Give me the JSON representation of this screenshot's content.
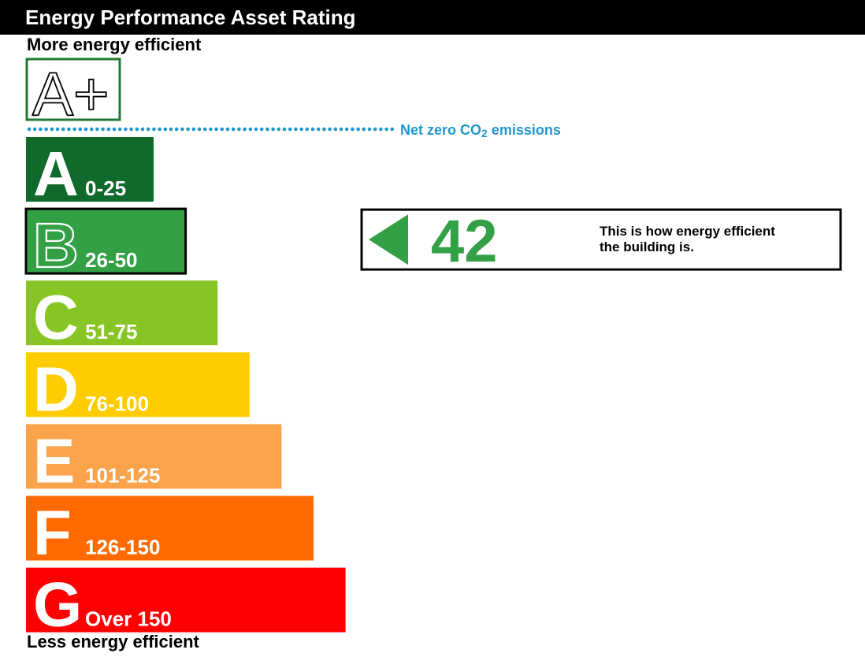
{
  "header": {
    "title": "Energy Performance Asset Rating"
  },
  "captions": {
    "more": "More energy efficient",
    "less": "Less energy efficient"
  },
  "net_zero": {
    "label_prefix": "Net zero CO",
    "label_subscript": "2",
    "label_suffix": " emissions",
    "color": "#1f97cc"
  },
  "chart_data": {
    "type": "bar",
    "title": "Energy Performance Asset Rating",
    "top_band": {
      "letter": "A+",
      "color": "#1f7a30"
    },
    "bands": [
      {
        "letter": "A",
        "range": "0-25",
        "color": "#0f6a2b",
        "text": "#ffffff"
      },
      {
        "letter": "B",
        "range": "26-50",
        "color": "#33a046",
        "text": "#ffffff"
      },
      {
        "letter": "C",
        "range": "51-75",
        "color": "#87c525",
        "text": "#ffffff"
      },
      {
        "letter": "D",
        "range": "76-100",
        "color": "#ffcc00",
        "text": "#ffffff"
      },
      {
        "letter": "E",
        "range": "101-125",
        "color": "#fba34b",
        "text": "#ffffff"
      },
      {
        "letter": "F",
        "range": "126-150",
        "color": "#ff6a00",
        "text": "#ffffff"
      },
      {
        "letter": "G",
        "range": "Over 150",
        "color": "#ff0000",
        "text": "#ffffff"
      }
    ],
    "current": {
      "value": 42,
      "band": "B",
      "color": "#33a046",
      "description_line1": "This is how energy efficient",
      "description_line2": "the building is."
    }
  }
}
